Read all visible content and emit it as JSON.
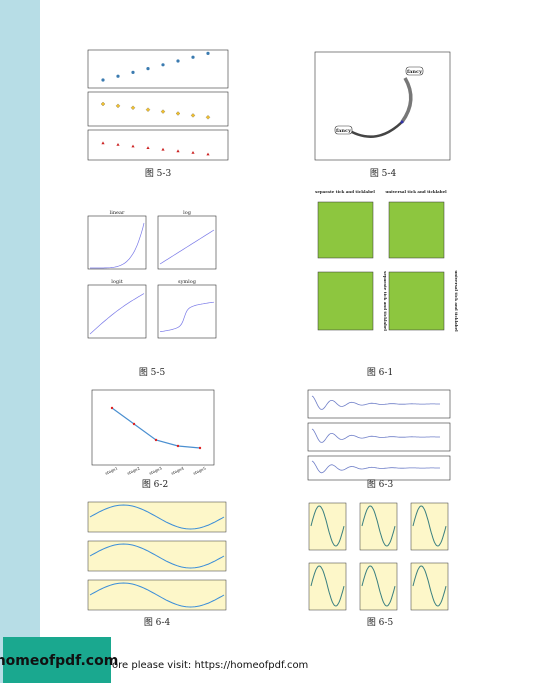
{
  "figures": [
    {
      "caption": "图 5-3"
    },
    {
      "caption": "图 5-4",
      "annotations": [
        "fancy",
        "fancy"
      ]
    },
    {
      "caption": "图 5-5",
      "panels": [
        "linear",
        "log",
        "logit",
        "symlog"
      ]
    },
    {
      "caption": "图 6-1",
      "panels": [
        "separate tick and ticklabel",
        "universal tick and ticklabel",
        "separate tick and ticklabel",
        "universal tick and ticklabel"
      ]
    },
    {
      "caption": "图 6-2",
      "categories": [
        "stage1",
        "stage2",
        "stage3",
        "stage4",
        "stage5"
      ]
    },
    {
      "caption": "图 6-3"
    },
    {
      "caption": "图 6-4"
    },
    {
      "caption": "图 6-5"
    }
  ],
  "footer": {
    "badge": "homeofpdf.com",
    "text": "ore please visit: https://homeofpdf.com"
  }
}
